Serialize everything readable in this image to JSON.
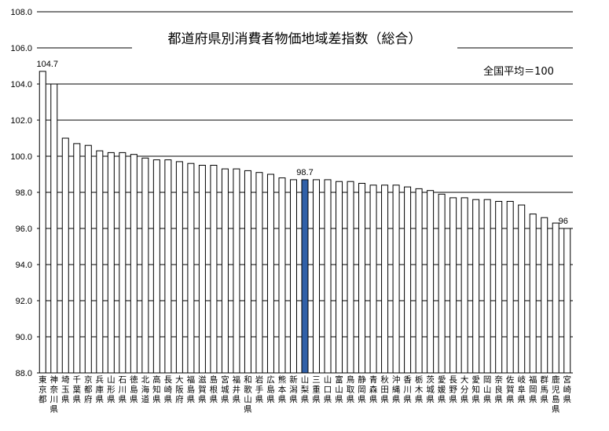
{
  "chart_data": {
    "type": "bar",
    "title": "都道府県別消費者物価地域差指数（総合）",
    "note": "全国平均＝100",
    "xlabel": "",
    "ylabel": "",
    "ylim": [
      88,
      108
    ],
    "yticks": [
      "88.0",
      "90.0",
      "92.0",
      "94.0",
      "96.0",
      "98.0",
      "100.0",
      "102.0",
      "104.0",
      "106.0",
      "108.0"
    ],
    "grid": true,
    "legend": "none",
    "bar_color": "#ffffff",
    "highlight_color": "#3060a8",
    "highlight_category": "山梨県",
    "categories": [
      "東京都",
      "神奈川県",
      "埼玉県",
      "千葉県",
      "京都府",
      "兵庫県",
      "山形県",
      "石川県",
      "徳島県",
      "北海道",
      "高知県",
      "長崎県",
      "大阪府",
      "福島県",
      "滋賀県",
      "島根県",
      "宮城県",
      "福井県",
      "和歌山県",
      "岩手県",
      "広島県",
      "熊本県",
      "新潟県",
      "山梨県",
      "三重県",
      "山口県",
      "富山県",
      "鳥取県",
      "静岡県",
      "青森県",
      "秋田県",
      "沖縄県",
      "香川県",
      "栃木県",
      "茨城県",
      "愛媛県",
      "長野県",
      "大分県",
      "愛知県",
      "岡山県",
      "奈良県",
      "佐賀県",
      "岐阜県",
      "福岡県",
      "群馬県",
      "鹿児島県",
      "宮崎県"
    ],
    "values": [
      104.7,
      104.0,
      101.0,
      100.7,
      100.6,
      100.3,
      100.2,
      100.2,
      100.1,
      99.9,
      99.8,
      99.8,
      99.7,
      99.6,
      99.5,
      99.5,
      99.3,
      99.3,
      99.2,
      99.1,
      99.0,
      98.8,
      98.7,
      98.7,
      98.7,
      98.7,
      98.6,
      98.6,
      98.5,
      98.4,
      98.4,
      98.4,
      98.3,
      98.2,
      98.1,
      97.9,
      97.7,
      97.7,
      97.6,
      97.6,
      97.5,
      97.5,
      97.3,
      96.8,
      96.6,
      96.3,
      96.0
    ],
    "data_labels": [
      {
        "category": "東京都",
        "text": "104.7"
      },
      {
        "category": "山梨県",
        "text": "98.7"
      },
      {
        "category": "宮崎県",
        "text": "96"
      }
    ]
  }
}
